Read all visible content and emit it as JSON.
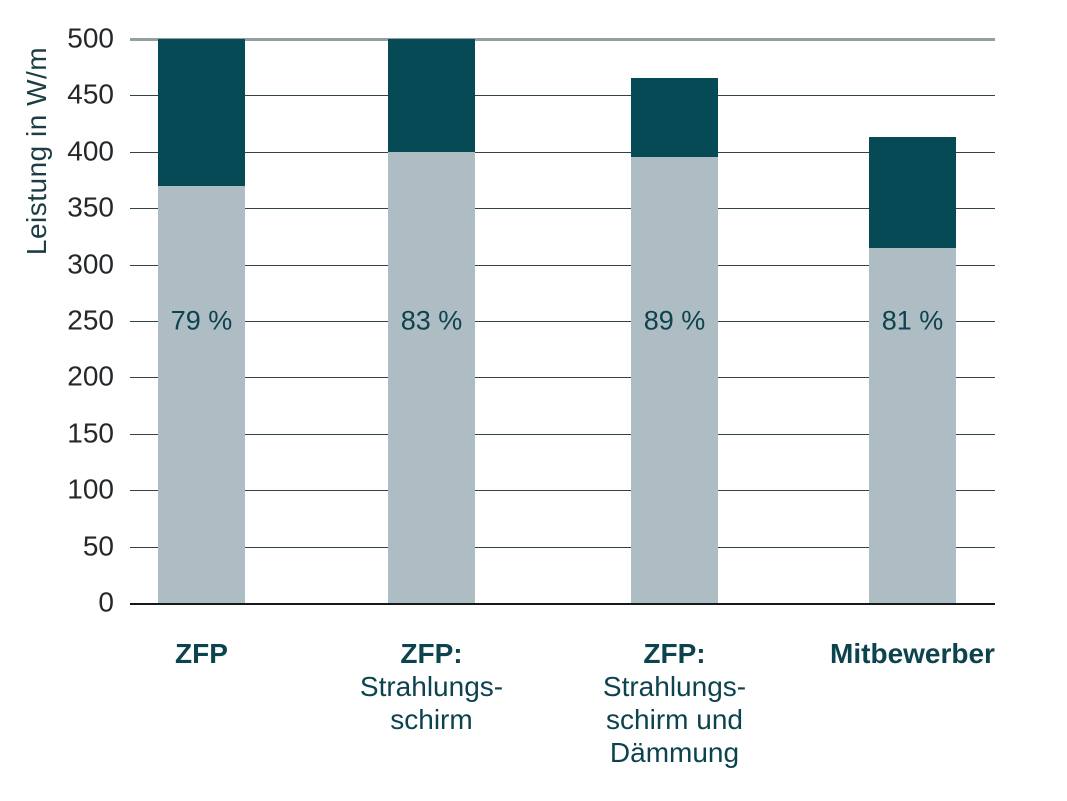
{
  "chart_data": {
    "type": "bar",
    "stacked": true,
    "title": "",
    "ylabel": "Leistung in W/m",
    "xlabel": "",
    "ylim": [
      0,
      500
    ],
    "ytick_interval": 50,
    "yticks": [
      500,
      450,
      400,
      350,
      300,
      250,
      200,
      150,
      100,
      50,
      0
    ],
    "grid": true,
    "legend": false,
    "categories": [
      "ZFP",
      "ZFP: Strahlungsschirm",
      "ZFP: Strahlungsschirm und Dämmung",
      "Mitbewerber"
    ],
    "category_label_lines": [
      [
        "ZFP"
      ],
      [
        "ZFP:",
        "Strahlungs-",
        "schirm"
      ],
      [
        "ZFP:",
        "Strahlungs-",
        "schirm und",
        "Dämmung"
      ],
      [
        "Mitbewerber"
      ]
    ],
    "series": [
      {
        "name": "bottom-segment",
        "color": "#aebcc4",
        "values": [
          370,
          400,
          395,
          315
        ]
      },
      {
        "name": "top-segment",
        "color": "#054a55",
        "values": [
          130,
          100,
          70,
          98
        ]
      }
    ],
    "totals": [
      500,
      500,
      465,
      413
    ],
    "bar_labels": [
      "79 %",
      "83 %",
      "89 %",
      "81 %"
    ],
    "bar_label_at_value": 250,
    "colors": {
      "segment_bottom": "#aebcc4",
      "segment_top": "#054a55",
      "grid_line": "#32424a",
      "top_line": "#93a0a2",
      "baseline": "#16191a",
      "tick_text": "#25282a",
      "label_text": "#0d434e",
      "axis_title_text": "#1c3d44",
      "background": "#ffffff"
    }
  }
}
